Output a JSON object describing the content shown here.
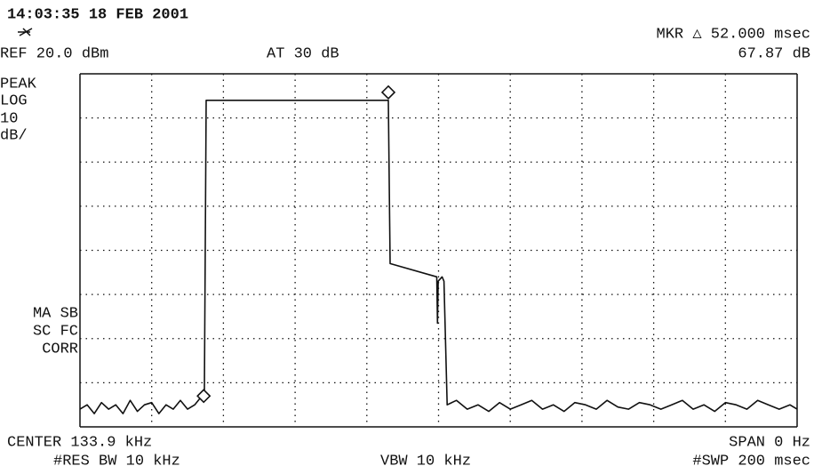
{
  "chart_data": {
    "type": "line",
    "datetime": "14:03:35  18 FEB 2001",
    "reference": "REF 20.0 dBm",
    "attenuation": "AT 30 dB",
    "marker_readout": {
      "delta": "MKR △ 52.000 msec",
      "level": "67.87 dB"
    },
    "scale_info": [
      "PEAK",
      "LOG",
      "10",
      "dB/"
    ],
    "status": [
      "MA SB",
      "SC FC",
      "CORR"
    ],
    "center": "CENTER 133.9 kHz",
    "res_bw": "#RES BW 10 kHz",
    "vbw": "VBW 10 kHz",
    "span": "SPAN 0 Hz",
    "sweep": "#SWP 200 msec",
    "color": "#111111",
    "grid": true,
    "xlim": [
      0,
      200
    ],
    "xticks": [
      0,
      20,
      40,
      60,
      80,
      100,
      120,
      140,
      160,
      180,
      200
    ],
    "ylim": [
      -60,
      20
    ],
    "yticks": [
      -60,
      -50,
      -40,
      -30,
      -20,
      -10,
      0,
      10,
      20
    ],
    "x": [
      0,
      2,
      4,
      6,
      8,
      10,
      12,
      14,
      16,
      18,
      20,
      22,
      24,
      26,
      28,
      30,
      32,
      34,
      34.7,
      35.2,
      86,
      86.5,
      99.5,
      99.7,
      99.9,
      101,
      101.5,
      102.4,
      105,
      108,
      111,
      114,
      117,
      120,
      123,
      126,
      129,
      132,
      135,
      138,
      141,
      144,
      147,
      150,
      153,
      156,
      159,
      162,
      165,
      168,
      171,
      174,
      177,
      180,
      183,
      186,
      189,
      192,
      195,
      198,
      200
    ],
    "values": [
      -56,
      -55,
      -57,
      -54.5,
      -56,
      -55,
      -57,
      -54,
      -56.5,
      -55,
      -54.5,
      -57,
      -55,
      -56,
      -54,
      -56,
      -55,
      -53,
      -52,
      14,
      14,
      -23,
      -26,
      -36.5,
      -27,
      -26,
      -27,
      -55,
      -54,
      -56,
      -55,
      -56.5,
      -54.5,
      -56,
      -55,
      -54,
      -56,
      -55,
      -56.5,
      -54.5,
      -55,
      -56,
      -54,
      -55.5,
      -56,
      -54.5,
      -55,
      -56,
      -55,
      -54,
      -56,
      -55,
      -56.5,
      -54.5,
      -55,
      -56,
      -54,
      -55,
      -56,
      -55,
      -56
    ],
    "markers": [
      {
        "x": 34.5,
        "y": -53
      },
      {
        "x": 86,
        "y": 15.8
      }
    ]
  }
}
